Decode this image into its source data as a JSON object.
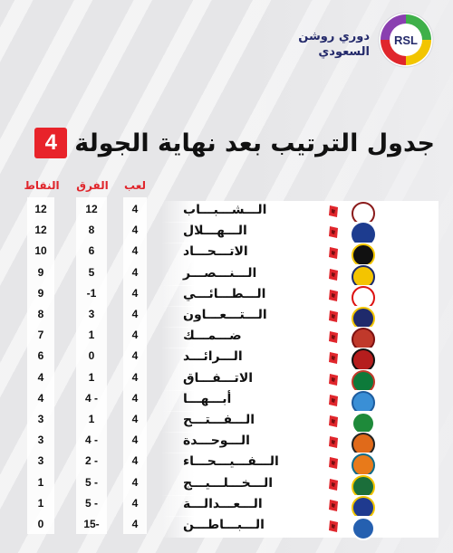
{
  "league": {
    "name_line1": "دوري روشن",
    "name_line2": "السعودي",
    "badge_text": "RSL"
  },
  "title": {
    "text": "جدول الترتيب بعد نهاية الجولة",
    "round": "4"
  },
  "columns": {
    "played": "لعب",
    "diff": "الفرق",
    "points": "النقاط"
  },
  "teams": [
    {
      "name": "الـــشـــبـــاب",
      "played": "4",
      "diff": "12",
      "points": "12",
      "color": "#ffffff",
      "accent": "#8a1a1a"
    },
    {
      "name": "الـــهـــلال",
      "played": "4",
      "diff": "8",
      "points": "12",
      "color": "#1d3c8f",
      "accent": "#1d3c8f"
    },
    {
      "name": "الاتـــحـــاد",
      "played": "4",
      "diff": "6",
      "points": "10",
      "color": "#111111",
      "accent": "#f2c500"
    },
    {
      "name": "الـــنـــصـــر",
      "played": "4",
      "diff": "5",
      "points": "9",
      "color": "#f4c400",
      "accent": "#1b2a6b"
    },
    {
      "name": "الـــطـــائـــي",
      "played": "4",
      "diff": "-1",
      "points": "9",
      "color": "#ffffff",
      "accent": "#d11"
    },
    {
      "name": "الـــتـــعـــاون",
      "played": "4",
      "diff": "3",
      "points": "8",
      "color": "#1f2a6b",
      "accent": "#f2c500"
    },
    {
      "name": "ضـــمـــك",
      "played": "4",
      "diff": "1",
      "points": "7",
      "color": "#c0392b",
      "accent": "#7b1111"
    },
    {
      "name": "الـــرائـــد",
      "played": "4",
      "diff": "0",
      "points": "6",
      "color": "#b51d1d",
      "accent": "#111"
    },
    {
      "name": "الاتـــفـــاق",
      "played": "4",
      "diff": "1",
      "points": "4",
      "color": "#0d7a3a",
      "accent": "#c0392b"
    },
    {
      "name": "أبـــهـــا",
      "played": "4",
      "diff": "4 -",
      "points": "4",
      "color": "#3a8fd6",
      "accent": "#1d5c9f"
    },
    {
      "name": "الـــفـــتـــح",
      "played": "4",
      "diff": "1",
      "points": "3",
      "color": "#1e8a3a",
      "accent": "#ffffff"
    },
    {
      "name": "الـــوحـــدة",
      "played": "4",
      "diff": "4 -",
      "points": "3",
      "color": "#e06a1a",
      "accent": "#222"
    },
    {
      "name": "الـــفـــيـــحـــاء",
      "played": "4",
      "diff": "2 -",
      "points": "3",
      "color": "#e87a1a",
      "accent": "#0e6b8a"
    },
    {
      "name": "الـــخـــلـــيـــج",
      "played": "4",
      "diff": "5 -",
      "points": "1",
      "color": "#1b6e3a",
      "accent": "#f2c500"
    },
    {
      "name": "الـــعـــدالـــة",
      "played": "4",
      "diff": "5 -",
      "points": "1",
      "color": "#1f3a8f",
      "accent": "#f2c500"
    },
    {
      "name": "الـــبـــاطـــن",
      "played": "4",
      "diff": "15-",
      "points": "0",
      "color": "#2560b0",
      "accent": "#ffffff"
    }
  ]
}
